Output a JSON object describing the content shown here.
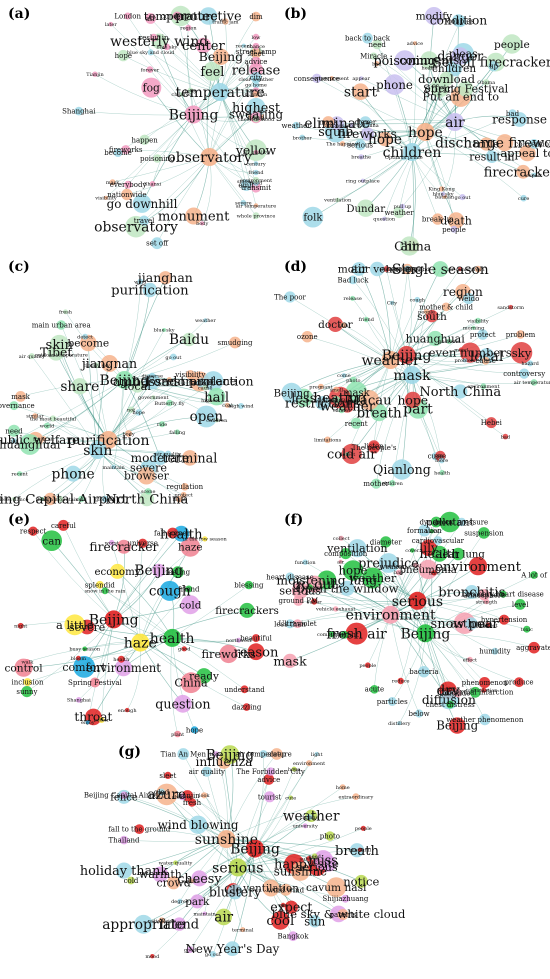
{
  "panels": [
    {
      "label": "(a)",
      "hubs": [
        "Beijing",
        "observatory",
        "temperature"
      ],
      "big": [
        "sweating",
        "monument",
        "protective",
        "go downhill",
        "feel",
        "temperature",
        "Beijing",
        "observatory",
        "center",
        "westerly wind",
        "highest",
        "yellow",
        "release",
        "fog"
      ],
      "mid": [
        "street lamp",
        "travel",
        "dim",
        "emit",
        "nationwide",
        "sleet",
        "condition",
        "transmit",
        "hope",
        "become",
        "dead",
        "poisoning",
        "London",
        "fireworks",
        "happen",
        "everybody",
        "set off",
        "reslut in",
        "advice",
        "city",
        "air",
        "Shanghai"
      ],
      "small": [
        "go home",
        "body",
        "blue sky and cloud",
        "Shanxi",
        "recent",
        "century",
        "air quality",
        "severe",
        "go out",
        "forever",
        "mask",
        "need",
        "low",
        "clear weather",
        "traffic jam",
        "cheerful mood",
        "environment",
        "blue sky",
        "region",
        "children",
        "chance",
        "visibility",
        "whole province",
        "maintain",
        "later",
        "friend",
        "air temperature",
        "Tianjin",
        "body",
        "smoke"
      ],
      "nodes": [
        [
          "#f29ac0",
          "#f6b38c",
          "#9fd8e8",
          "#bfe6c2"
        ]
      ]
    },
    {
      "label": "(b)",
      "hubs": [
        "hope",
        "air",
        "children"
      ],
      "big": [
        "firecrackers",
        "poisoning",
        "squib",
        "fireworks",
        "discharge fireworks",
        "Dundar",
        "death",
        "result in",
        "appeal to",
        "Put an end to",
        "pleas",
        "folk",
        "effect",
        "response",
        "start",
        "trifle",
        "condition",
        "China",
        "children",
        "hope",
        "air",
        "Set off firecrackers",
        "eliminate",
        "danger",
        "modify",
        "comments",
        "phone",
        "Spring Festival",
        "people",
        "download"
      ],
      "mid": [
        "couples",
        "convention",
        "break up",
        "consequence",
        "back to back",
        "up",
        "people",
        "serious",
        "weather",
        "mask",
        "clever",
        "need",
        "weather",
        "Miracle",
        "bad"
      ],
      "small": [
        "question",
        "appear",
        "ambassador to China",
        "King Kong",
        "pull up",
        "Obama",
        "ring outplace",
        "Optimus prime",
        "batman",
        "The happiest",
        "expert",
        "ventilation",
        "cure",
        "blue sky",
        "go out",
        "breathe",
        "bad",
        "advice",
        "brother",
        "health",
        "when present"
      ],
      "nodes": [
        [
          "#f6b38c",
          "#c9c0f0",
          "#9fd8e8",
          "#bfe6c2"
        ]
      ]
    },
    {
      "label": "(c)",
      "hubs": [
        "Beijing",
        "purification",
        "skin"
      ],
      "big": [
        "purification",
        "skin",
        "ambassador",
        "Forest protection",
        "open",
        "become",
        "Public welfare",
        "Beijing Capital Airport",
        "terminal",
        "airplane",
        "huanghuai",
        "North China",
        "moderate",
        "severe",
        "jiangnan",
        "jianghan",
        "Tibet",
        "local",
        "Baidu",
        "phone",
        "browser",
        "hail",
        "share"
      ],
      "mid": [
        "factory",
        "main urban area",
        "visibility",
        "smudging",
        "governance",
        "regulation",
        "mask",
        "need"
      ],
      "small": [
        "fresh",
        "cloudy sky",
        "not",
        "coal",
        "falling",
        "air quality",
        "highest",
        "outdoor temperature",
        "Bees dance",
        "high wind",
        "level",
        "high mountain",
        "detect",
        "cold",
        "protect",
        "go out",
        "Butterfly fly",
        "the most beautiful",
        "weather",
        "glorious",
        "think",
        "bad",
        "blue sky",
        "hope",
        "maintain",
        "world",
        "similar",
        "fresh air",
        "disperse",
        "scene",
        "body",
        "cause",
        "air quality",
        "children",
        "government",
        "recent",
        "wind",
        "ride",
        "flight"
      ],
      "nodes": [
        [
          "#8fe3b0",
          "#f6b38c",
          "#9fd8e8",
          "#bfe6c2"
        ]
      ]
    },
    {
      "label": "(d)",
      "hubs": [
        "weather",
        "Beijing",
        "mask"
      ],
      "big": [
        "south",
        "part",
        "cold air",
        "huanghuai",
        "region",
        "North China",
        "less",
        "local",
        "weather",
        "Beijing",
        "hope",
        "sky",
        "air",
        "mask",
        "breath",
        "motor vehicles",
        "even numbers",
        "restrictions",
        "heating",
        "Single season",
        "Macau",
        "doctor",
        "Qianlong"
      ],
      "mid": [
        "The poor",
        "controversy",
        "Bad luck",
        "cause",
        "economic",
        "protect",
        "recent",
        "cure",
        "mother & child",
        "Weido",
        "listen",
        "mother",
        "The people's",
        "dialogue",
        "see",
        "problem",
        "Hebei",
        "ozone"
      ],
      "small": [
        "skin",
        "sandstorm",
        "children",
        "go home",
        "think",
        "cannot",
        "severe high wind",
        "fresh",
        "morning",
        "smell",
        "photo",
        "air temperature",
        "air quality",
        "visibility",
        "release",
        "cough",
        "bad",
        "hazard",
        "health",
        "pregnant",
        "friend",
        "mood",
        "problem",
        "limitations",
        "detect",
        "City",
        "people",
        "more",
        "come",
        "environment"
      ],
      "nodes": [
        [
          "#f6b38c",
          "#e04040",
          "#9fd8e8",
          "#8fe3b0"
        ]
      ]
    },
    {
      "label": "(e)",
      "hubs": [
        "Beijing",
        "haze",
        "health"
      ],
      "big": [
        "Beijing",
        "haze",
        "reason",
        "firecracker",
        "firecrackers",
        "fireworks",
        "health",
        "ready",
        "economy",
        "can",
        "question",
        "environment",
        "cold",
        "severe",
        "a little",
        "China",
        "throat",
        "cough",
        "comfort",
        "control"
      ],
      "mid": [
        "careful",
        "inclusion",
        "blessing",
        "sunny",
        "dazzling",
        "splendid",
        "fall screen",
        "friend",
        "understand",
        "Spring Festival",
        "feeling",
        "beautiful",
        "respect",
        "universe",
        "hope"
      ],
      "small": [
        "in the low season",
        "busy season",
        "snow in the rain",
        "night",
        "walk",
        "northwest",
        "good",
        "Shanghai",
        "plant",
        "better",
        "enough",
        "bloom",
        "enjoy",
        "worst",
        "health"
      ],
      "nodes": [
        [
          "#e02020",
          "#ffe840",
          "#22c040",
          "#18a8e0",
          "#f08090",
          "#e0a0e8"
        ]
      ]
    },
    {
      "label": "(f)",
      "hubs": [
        "serious",
        "environment",
        "Beijing"
      ],
      "big": [
        "Clear lung",
        "pneumonia",
        "lily",
        "dry",
        "snow pear",
        "moistening lung",
        "bronchitis",
        "asthma",
        "prejudice",
        "ventilation",
        "diffusion",
        "Open the window",
        "serious",
        "environment",
        "Beijing",
        "health",
        "mask",
        "go out",
        "weather",
        "pollutant",
        "hope",
        "fresh air"
      ],
      "mid": [
        "injurant",
        "dynamics",
        "level",
        "composition",
        "dioxide",
        "weather phenomenon",
        "humidity",
        "below",
        "particles",
        "ground PM",
        "atmosphere",
        "A lot of",
        "less than",
        "diameter",
        "suspension",
        "phenomenon",
        "formation",
        "produce",
        "bacteria",
        "cardiovascular",
        "chest distress",
        "hypertension",
        "heart disease",
        "myocardial infarction",
        "blood pressure",
        "acute",
        "aggravate",
        "coronary heart disease",
        "Ultraviolet",
        "weaken"
      ],
      "small": [
        "collect",
        "sunshine",
        "cover",
        "air",
        "time",
        "dust",
        "toxic",
        "people",
        "effect",
        "reduce",
        "sulfur",
        "distillery",
        "harm",
        "inhalation",
        "strength",
        "Ventilation",
        "function",
        "vehicle exhaust",
        "combustion",
        "protect",
        "bad"
      ],
      "nodes": [
        [
          "#e02020",
          "#f6a0b0",
          "#22c040",
          "#9fd8e8"
        ]
      ]
    },
    {
      "label": "(g)",
      "hubs": [
        "Beijing",
        "sunshine",
        "serious"
      ],
      "big": [
        "Clo",
        "happy",
        "friend",
        "New Year's Day",
        "holiday thank",
        "park",
        "cheesy",
        "ventilation",
        "influenza",
        "cavum nasi",
        "fence",
        "cool",
        "notice",
        "crowd",
        "appropriate",
        "site",
        "sunshine",
        "sun",
        "blustery",
        "Beijing",
        "weather",
        "air",
        "breath",
        "serious",
        "expect",
        "warmth",
        "blue sky & white cloud",
        "wind blowing",
        "miss",
        "azure"
      ],
      "mid": [
        "parents",
        "wind wind",
        "glad",
        "fall to the ground",
        "sleep",
        "photo",
        "sleet",
        "air quality",
        "advice",
        "air temperature",
        "cold",
        "fresh",
        "Tianjin",
        "Beijing Capital Airport",
        "tourist",
        "Bangkok",
        "Thailand",
        "Shijiazhuang",
        "The Forbidden City",
        "Tian An Men"
      ],
      "small": [
        "good",
        "degree",
        "people",
        "environment",
        "water quality",
        "nationwide",
        "university",
        "hotel",
        "subway",
        "square",
        "terminal",
        "go out",
        "light",
        "maintain",
        "children",
        "change",
        "look",
        "cute",
        "home",
        "run",
        "mood",
        "hope",
        "extraordinary",
        "beautiful",
        "need"
      ],
      "nodes": [
        [
          "#e02020",
          "#f6b38c",
          "#b8d850",
          "#9fd8e8",
          "#e0a0e8"
        ]
      ]
    }
  ]
}
